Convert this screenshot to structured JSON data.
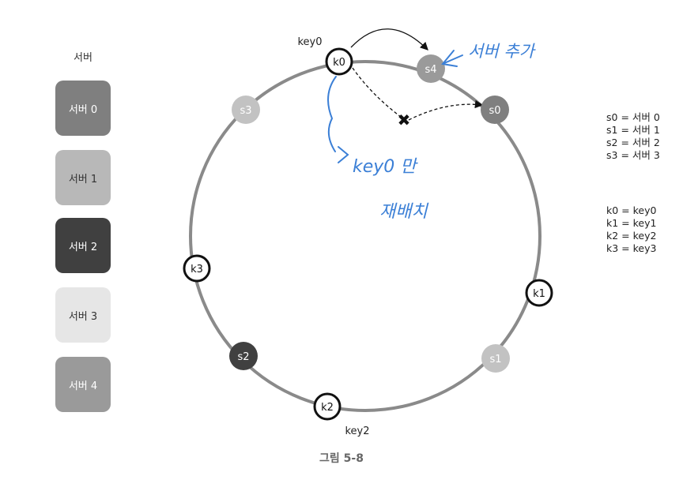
{
  "servers_panel": {
    "title": "서버",
    "boxes": [
      {
        "label": "서버 0",
        "color": "#7f7f7f",
        "text_color": "#ffffff"
      },
      {
        "label": "서버 1",
        "color": "#b8b8b8",
        "text_color": "#333333"
      },
      {
        "label": "서버 2",
        "color": "#404040",
        "text_color": "#ffffff"
      },
      {
        "label": "서버 3",
        "color": "#e6e6e6",
        "text_color": "#333333"
      },
      {
        "label": "서버 4",
        "color": "#9a9a9a",
        "text_color": "#ffffff"
      }
    ]
  },
  "ring": {
    "servers": {
      "s0": {
        "label": "s0",
        "color": "#7f7f7f",
        "text_color": "#ffffff"
      },
      "s1": {
        "label": "s1",
        "color": "#c2c2c2",
        "text_color": "#ffffff"
      },
      "s2": {
        "label": "s2",
        "color": "#404040",
        "text_color": "#ffffff"
      },
      "s3": {
        "label": "s3",
        "color": "#c2c2c2",
        "text_color": "#ffffff"
      },
      "s4": {
        "label": "s4",
        "color": "#9a9a9a",
        "text_color": "#ffffff"
      }
    },
    "keys": {
      "k0": {
        "label": "k0"
      },
      "k1": {
        "label": "k1"
      },
      "k2": {
        "label": "k2"
      },
      "k3": {
        "label": "k3"
      }
    },
    "key0_label": "key0",
    "key2_label": "key2",
    "removed_marker": "✖"
  },
  "annotations": {
    "add_server": "서버 추가",
    "note_line1": "key0 만",
    "note_line2": "재배치"
  },
  "legend": {
    "servers": [
      "s0 = 서버 0",
      "s1 = 서버 1",
      "s2 = 서버 2",
      "s3 = 서버 3"
    ],
    "keys": [
      "k0 = key0",
      "k1 = key1",
      "k2 = key2",
      "k3 = key3"
    ]
  },
  "caption": "그림 5-8",
  "colors": {
    "ring": "#8a8a8a",
    "handwriting": "#3b7fd6",
    "key_border": "#111111"
  }
}
